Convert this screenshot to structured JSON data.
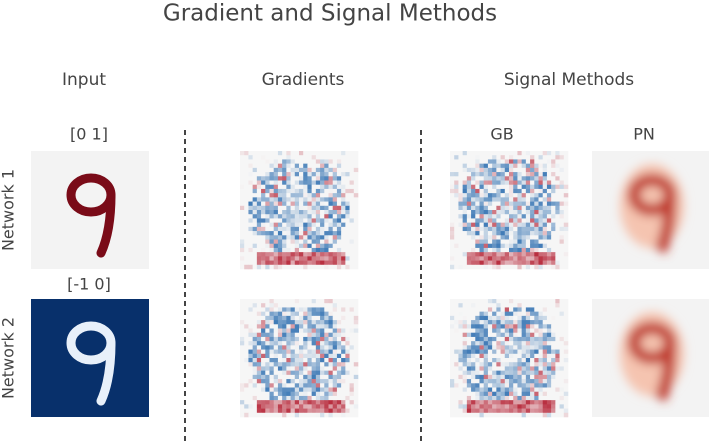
{
  "title": "Gradient and Signal Methods",
  "columns": [
    "Input",
    "Gradients",
    "Signal Methods"
  ],
  "signal_methods": [
    "GB",
    "PN"
  ],
  "input_labels": [
    "[0 1]",
    "[-1 0]"
  ],
  "rows": [
    "Network 1",
    "Network 2"
  ]
}
